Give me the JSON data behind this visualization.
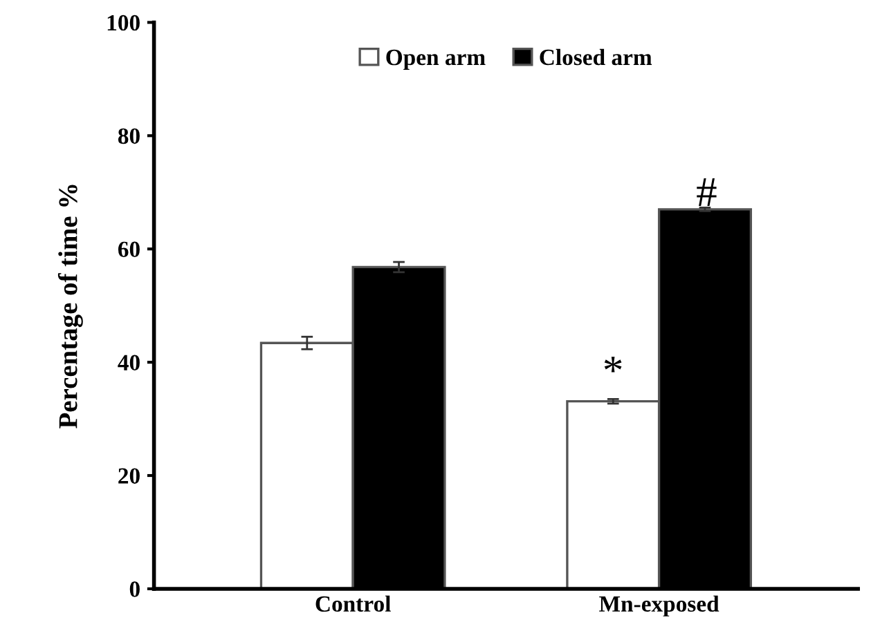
{
  "chart_data": {
    "type": "bar",
    "ylabel": "Percentage of time %",
    "categories": [
      "Control",
      "Mn-exposed"
    ],
    "series": [
      {
        "name": "Open arm",
        "color": "#ffffff",
        "values": [
          43.4,
          33.1
        ],
        "errors": [
          1.1,
          0.4
        ]
      },
      {
        "name": "Closed arm",
        "color": "#000000",
        "values": [
          56.8,
          67.0
        ],
        "errors": [
          0.9,
          0.3
        ]
      }
    ],
    "ylim": [
      0,
      100
    ],
    "yticks": [
      0,
      20,
      40,
      60,
      80,
      100
    ],
    "grid": false,
    "legend": "top",
    "annotations": [
      "*",
      "#"
    ]
  }
}
